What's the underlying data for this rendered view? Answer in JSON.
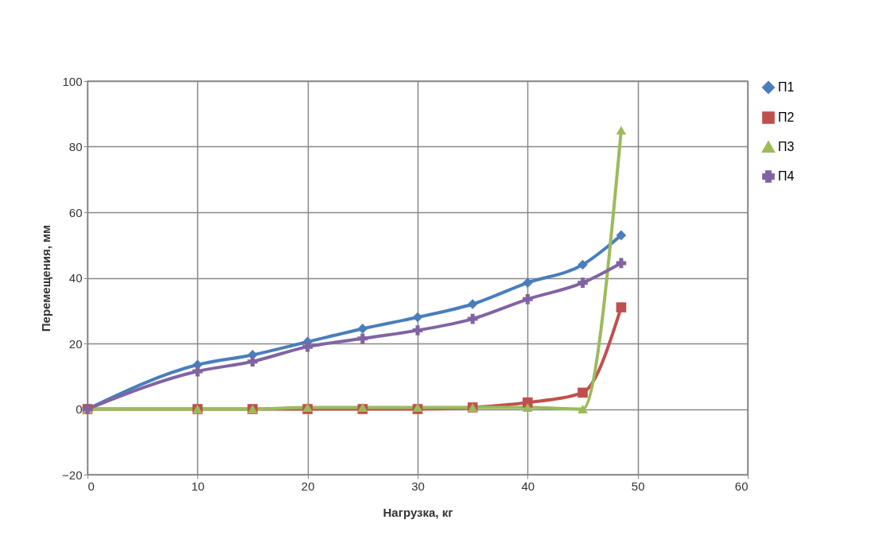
{
  "chart_data": {
    "type": "line",
    "xlabel": "Нагрузка, кг",
    "ylabel": "Перемещения, мм",
    "x": [
      0,
      10,
      15,
      20,
      25,
      30,
      35,
      40,
      45,
      48.5
    ],
    "series": [
      {
        "name": "П1",
        "color": "#4a7ebb",
        "marker": "diamond",
        "values": [
          0,
          13.5,
          16.5,
          20.5,
          24.5,
          28,
          32,
          38.5,
          44,
          53
        ]
      },
      {
        "name": "П2",
        "color": "#c0504d",
        "marker": "square",
        "values": [
          0,
          0,
          0,
          0,
          0,
          0,
          0.5,
          2,
          5,
          31
        ]
      },
      {
        "name": "П3",
        "color": "#9bbb59",
        "marker": "triangle",
        "values": [
          0,
          0,
          0,
          0.5,
          0.5,
          0.5,
          0.5,
          0.5,
          0,
          85
        ]
      },
      {
        "name": "П4",
        "color": "#8064a2",
        "marker": "cross",
        "values": [
          0,
          11.5,
          14.5,
          19,
          21.5,
          24,
          27.5,
          33.5,
          38.5,
          44.5
        ]
      }
    ],
    "xlim": [
      0,
      60
    ],
    "xticks": [
      0,
      10,
      20,
      30,
      40,
      50,
      60
    ],
    "ylim": [
      -20,
      100
    ],
    "yticks": [
      -20,
      0,
      20,
      40,
      60,
      80,
      100
    ],
    "grid": true,
    "legend": "right",
    "line_style": "solid"
  }
}
